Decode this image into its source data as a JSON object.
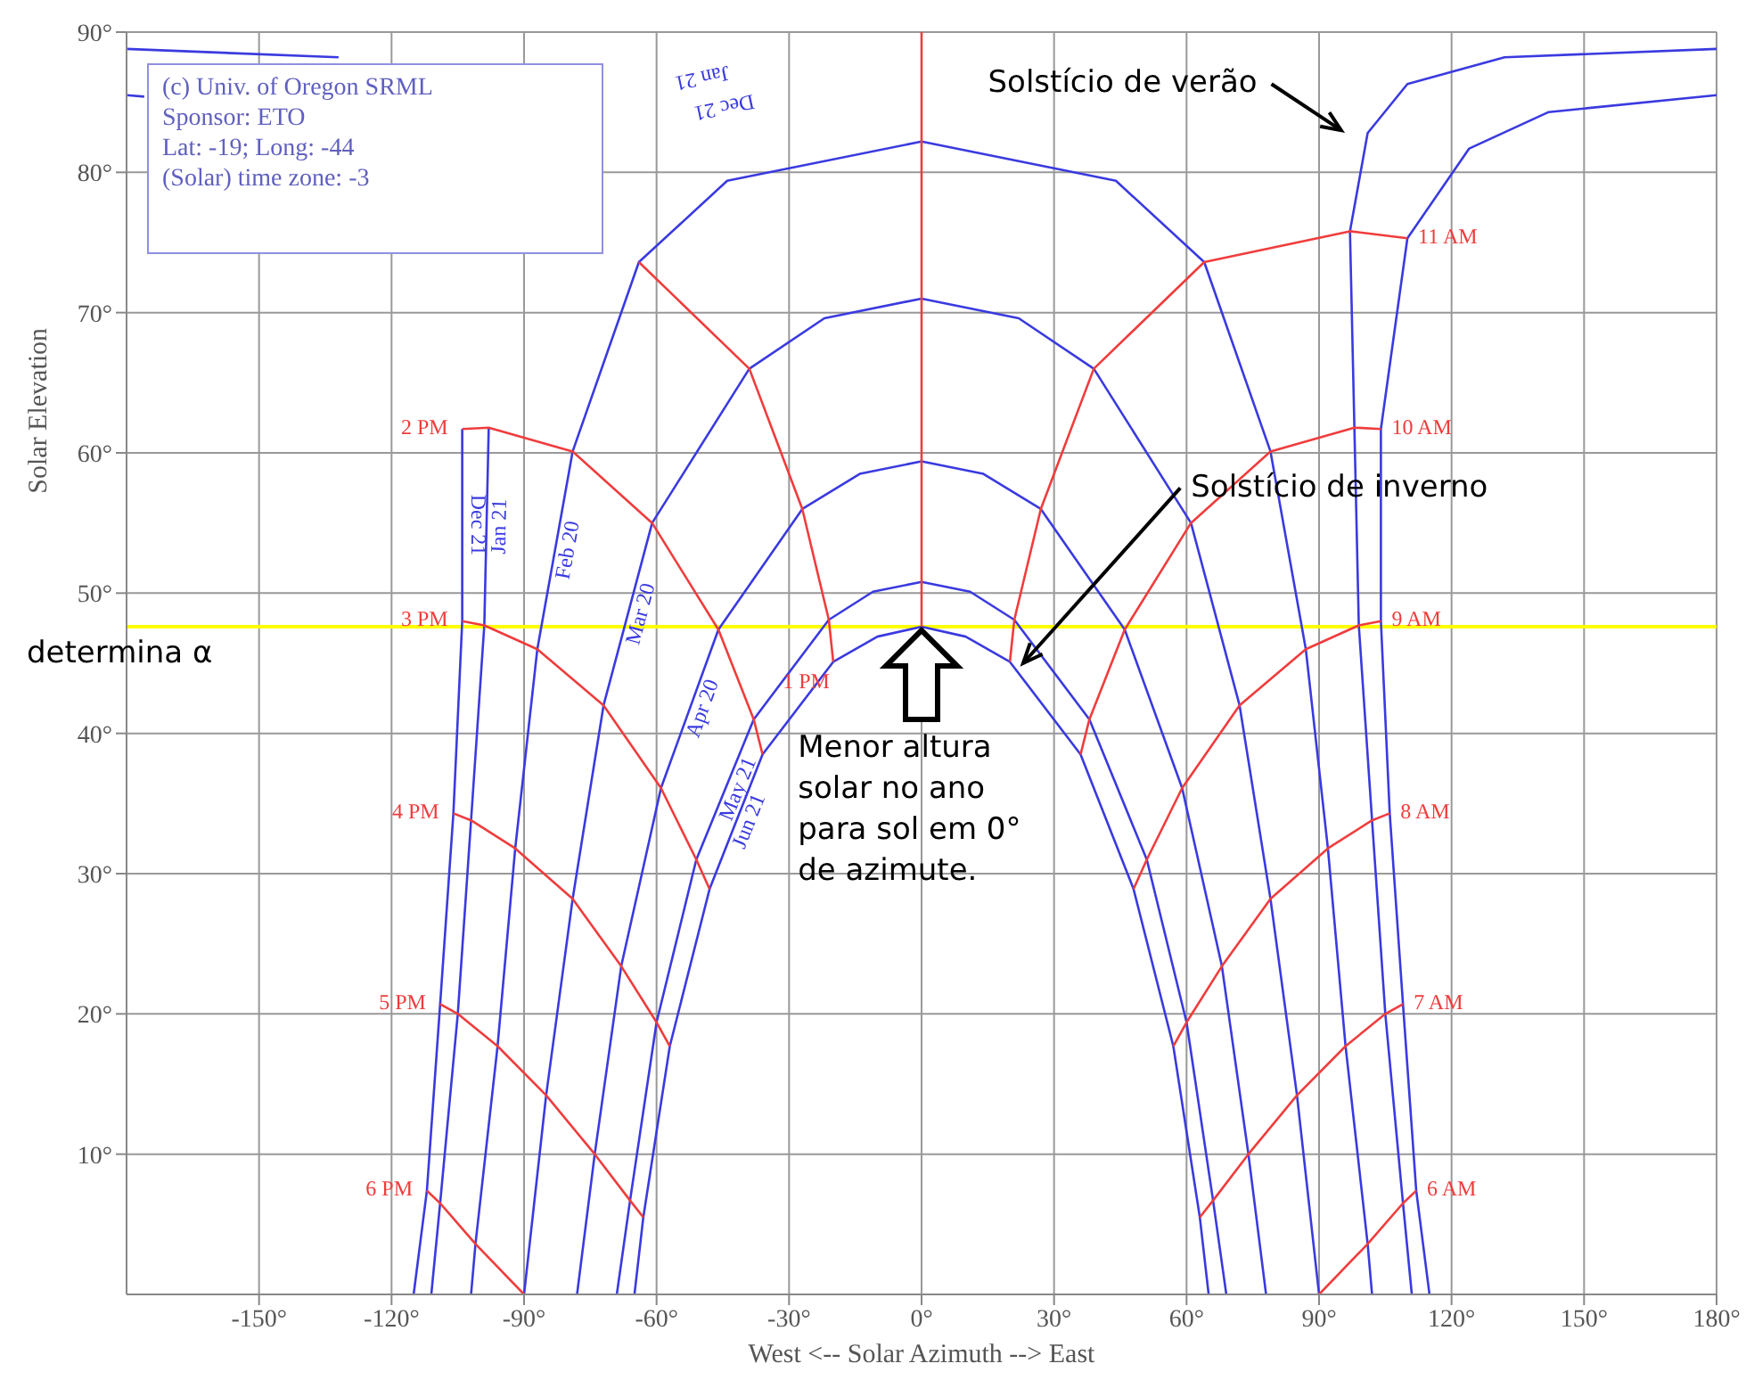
{
  "chart_data": {
    "type": "line",
    "xlabel": "West <-- Solar Azimuth --> East",
    "ylabel": "Solar Elevation",
    "xlim": [
      -180,
      180
    ],
    "ylim": [
      0,
      90
    ],
    "xticks": [
      {
        "value": -150,
        "label": "-150°"
      },
      {
        "value": -120,
        "label": "-120°"
      },
      {
        "value": -90,
        "label": "-90°"
      },
      {
        "value": -60,
        "label": "-60°"
      },
      {
        "value": -30,
        "label": "-30°"
      },
      {
        "value": 0,
        "label": "0°"
      },
      {
        "value": 30,
        "label": "30°"
      },
      {
        "value": 60,
        "label": "60°"
      },
      {
        "value": 90,
        "label": "90°"
      },
      {
        "value": 120,
        "label": "120°"
      },
      {
        "value": 150,
        "label": "150°"
      },
      {
        "value": 180,
        "label": "180°"
      }
    ],
    "yticks": [
      {
        "value": 10,
        "label": "10°"
      },
      {
        "value": 20,
        "label": "20°"
      },
      {
        "value": 30,
        "label": "30°"
      },
      {
        "value": 40,
        "label": "40°"
      },
      {
        "value": 50,
        "label": "50°"
      },
      {
        "value": 60,
        "label": "60°"
      },
      {
        "value": 70,
        "label": "70°"
      },
      {
        "value": 80,
        "label": "80°"
      },
      {
        "value": 90,
        "label": "90°"
      }
    ],
    "grid": true,
    "marker": "none",
    "line_style": "solid",
    "series": [
      {
        "name": "Dec 21",
        "color": "#3a3ae0",
        "x": [
          -180,
          -176,
          null,
          -104,
          -104,
          -106,
          -109,
          -112,
          -115,
          null,
          115,
          112,
          109,
          106,
          104,
          104,
          110,
          124,
          142,
          180
        ],
        "values": [
          85.5,
          85.4,
          null,
          61.7,
          48,
          34.3,
          20.7,
          7.4,
          0,
          null,
          0,
          7.4,
          20.7,
          34.3,
          48,
          61.7,
          75.3,
          81.7,
          84.3,
          85.5
        ]
      },
      {
        "name": "Jan 21",
        "color": "#3a3ae0",
        "x": [
          -180,
          -132,
          null,
          -98,
          -99,
          -102,
          -105,
          -109,
          -111,
          null,
          111,
          109,
          105,
          102,
          99,
          98,
          97,
          101,
          110,
          132,
          180
        ],
        "values": [
          88.8,
          88.2,
          null,
          61.8,
          47.7,
          33.8,
          20,
          6.5,
          0,
          null,
          0,
          6.5,
          20,
          33.8,
          47.7,
          61.8,
          75.8,
          82.8,
          86.3,
          88.2,
          88.8
        ]
      },
      {
        "name": "Feb 20",
        "color": "#3a3ae0",
        "x": [
          -102,
          -101,
          -96,
          -92,
          -87,
          -79,
          -64,
          -44,
          0,
          44,
          64,
          79,
          87,
          92,
          96,
          101,
          102
        ],
        "values": [
          0,
          3.6,
          17.7,
          31.8,
          46,
          60.1,
          73.6,
          79.4,
          82.2,
          79.4,
          73.6,
          60.1,
          46,
          31.8,
          17.7,
          3.6,
          0
        ]
      },
      {
        "name": "Mar 20",
        "color": "#3a3ae0",
        "x": [
          -90,
          -85,
          -79,
          -72,
          -61,
          -39,
          -22,
          0,
          22,
          39,
          61,
          72,
          79,
          85,
          90
        ],
        "values": [
          0,
          14.2,
          28.2,
          42,
          55,
          66,
          69.6,
          71,
          69.6,
          66,
          55,
          42,
          28.2,
          14.2,
          0
        ]
      },
      {
        "name": "Apr 20",
        "color": "#3a3ae0",
        "x": [
          -78,
          -74,
          -68,
          -59,
          -46,
          -27,
          -14,
          0,
          14,
          27,
          46,
          59,
          68,
          74,
          78
        ],
        "values": [
          0,
          10,
          23.4,
          36.1,
          47.4,
          56,
          58.5,
          59.4,
          58.5,
          56,
          47.4,
          36.1,
          23.4,
          10,
          0
        ]
      },
      {
        "name": "May 21",
        "color": "#3a3ae0",
        "x": [
          -69,
          -66,
          -60,
          -51,
          -38,
          -21,
          -11,
          0,
          11,
          21,
          38,
          51,
          60,
          66,
          69
        ],
        "values": [
          0,
          6.7,
          19.4,
          31,
          41,
          48.1,
          50.1,
          50.8,
          50.1,
          48.1,
          41,
          31,
          19.4,
          6.7,
          0
        ]
      },
      {
        "name": "Jun 21",
        "color": "#3a3ae0",
        "x": [
          -65,
          -63,
          -57,
          -48,
          -36,
          -20,
          -10,
          0,
          10,
          20,
          36,
          48,
          57,
          63,
          65
        ],
        "values": [
          0,
          5.5,
          17.7,
          28.9,
          38.5,
          45.1,
          46.9,
          47.6,
          46.9,
          45.1,
          38.5,
          28.9,
          17.7,
          5.5,
          0
        ]
      },
      {
        "color": "#f03c3c",
        "x": [
          0,
          0,
          0,
          0,
          0,
          0
        ],
        "values": [
          47.6,
          50.8,
          59.4,
          71,
          82.2,
          90
        ]
      },
      {
        "name": "11 AM",
        "color": "#f03c3c",
        "x": [
          110,
          97,
          64,
          39,
          27,
          21,
          20
        ],
        "values": [
          75.3,
          75.8,
          73.6,
          66,
          56,
          48.1,
          45.1
        ]
      },
      {
        "name": "10 AM",
        "color": "#f03c3c",
        "x": [
          104,
          98,
          79,
          61,
          46,
          38,
          36
        ],
        "values": [
          61.7,
          61.8,
          60.1,
          55,
          47.4,
          41,
          38.5
        ]
      },
      {
        "name": "9 AM",
        "color": "#f03c3c",
        "x": [
          104,
          99,
          87,
          72,
          59,
          51,
          48
        ],
        "values": [
          48,
          47.7,
          46,
          42,
          36.1,
          31,
          28.9
        ]
      },
      {
        "name": "8 AM",
        "color": "#f03c3c",
        "x": [
          106,
          102,
          92,
          79,
          68,
          60,
          57
        ],
        "values": [
          34.3,
          33.8,
          31.8,
          28.2,
          23.4,
          19.4,
          17.7
        ]
      },
      {
        "name": "7 AM",
        "color": "#f03c3c",
        "x": [
          109,
          105,
          96,
          85,
          74,
          66,
          63
        ],
        "values": [
          20.7,
          20,
          17.7,
          14.2,
          10,
          6.7,
          5.5
        ]
      },
      {
        "name": "6 AM",
        "color": "#f03c3c",
        "x": [
          112,
          109,
          101,
          90
        ],
        "values": [
          7.4,
          6.5,
          3.6,
          0
        ]
      },
      {
        "name": "1 PM",
        "color": "#f03c3c",
        "x": [
          -64,
          -39,
          -27,
          -21,
          -20
        ],
        "values": [
          73.6,
          66,
          56,
          48.1,
          45.1
        ]
      },
      {
        "name": "2 PM",
        "color": "#f03c3c",
        "x": [
          -104,
          -98,
          -79,
          -61,
          -46,
          -38,
          -36
        ],
        "values": [
          61.7,
          61.8,
          60.1,
          55,
          47.4,
          41,
          38.5
        ]
      },
      {
        "name": "3 PM",
        "color": "#f03c3c",
        "x": [
          -104,
          -99,
          -87,
          -72,
          -59,
          -51,
          -48
        ],
        "values": [
          48,
          47.7,
          46,
          42,
          36.1,
          31,
          28.9
        ]
      },
      {
        "name": "4 PM",
        "color": "#f03c3c",
        "x": [
          -106,
          -102,
          -92,
          -79,
          -68,
          -60,
          -57
        ],
        "values": [
          34.3,
          33.8,
          31.8,
          28.2,
          23.4,
          19.4,
          17.7
        ]
      },
      {
        "name": "5 PM",
        "color": "#f03c3c",
        "x": [
          -109,
          -105,
          -96,
          -85,
          -74,
          -66,
          -63
        ],
        "values": [
          20.7,
          20,
          17.7,
          14.2,
          10,
          6.7,
          5.5
        ]
      },
      {
        "name": "6 PM",
        "color": "#f03c3c",
        "x": [
          -112,
          -109,
          -101,
          -90
        ],
        "values": [
          7.4,
          6.5,
          3.6,
          0
        ]
      }
    ],
    "ref_lines": [
      {
        "axis": "y",
        "value": 47.6,
        "label": "determina α",
        "color": "#ffff00"
      }
    ],
    "annotations": [
      "(c) Univ. of Oregon SRML",
      "Sponsor: ETO",
      "Lat: -19; Long: -44",
      "(Solar) time zone: -3",
      "Solstício de verão",
      "Solstício de inverno",
      "Menor altura solar no ano para sol em 0° de azimute.",
      "Jan 21",
      "Dec 21"
    ]
  }
}
